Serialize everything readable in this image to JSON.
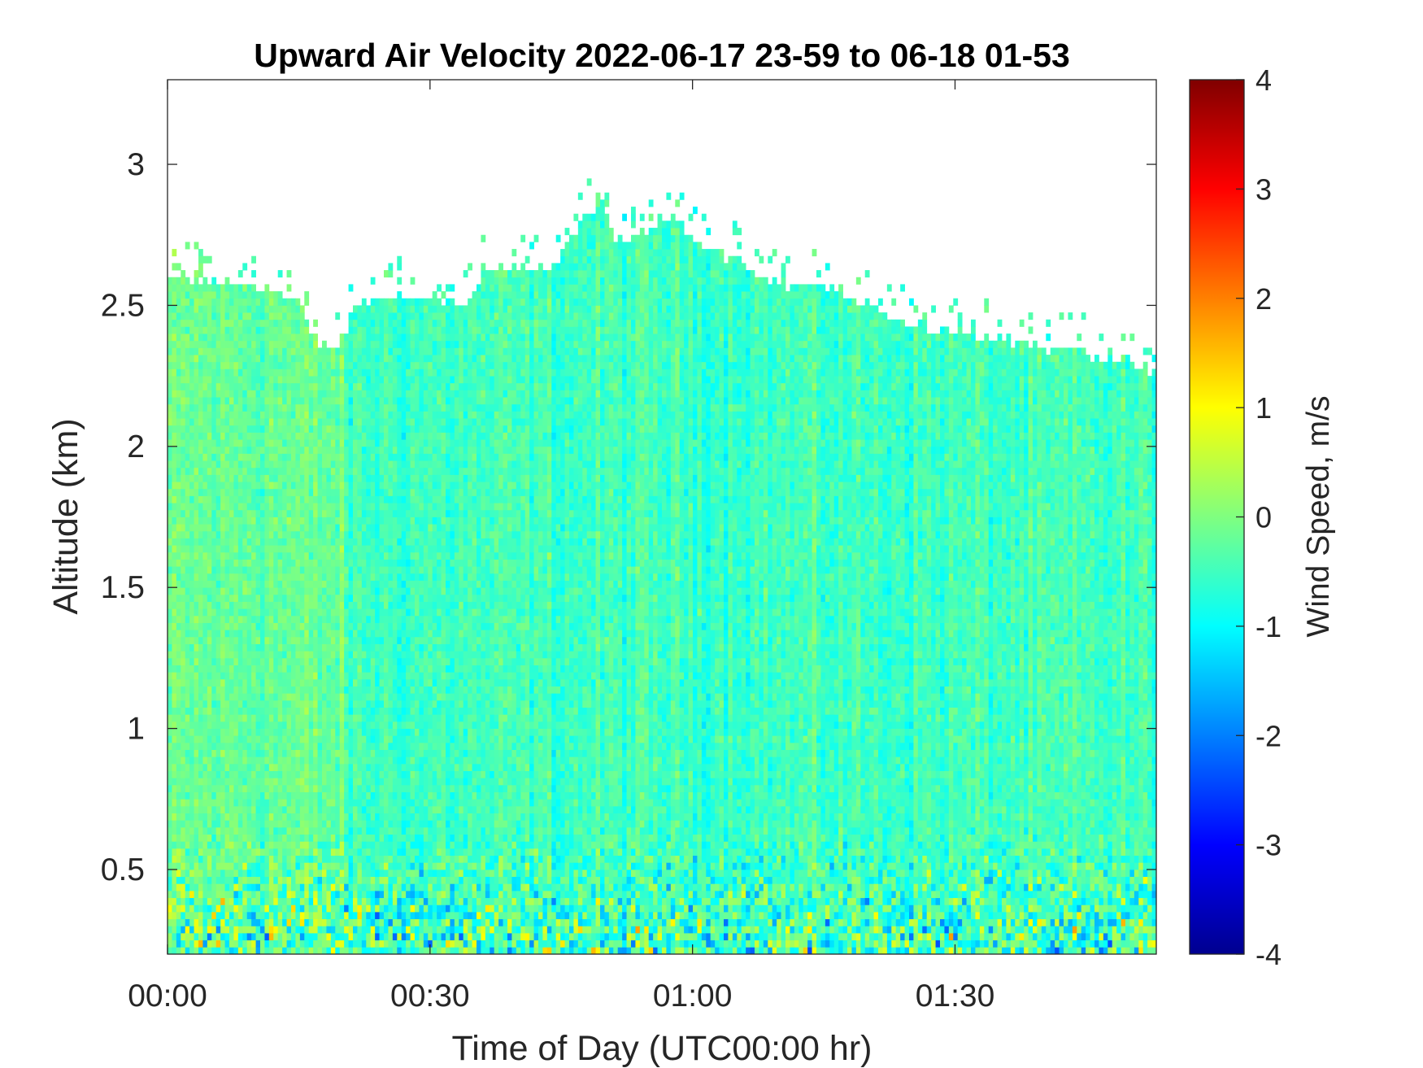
{
  "chart_data": {
    "type": "heatmap",
    "title": "Upward Air Velocity 2022-06-17 23-59 to 06-18 01-53",
    "xlabel": "Time of Day (UTC00:00 hr)",
    "ylabel": "Altitude (km)",
    "colorbar_label": "Wind Speed, m/s",
    "colormap": "jet",
    "x_unit": "minutes after 00:00 UTC",
    "xlim": [
      0,
      113
    ],
    "ylim": [
      0.2,
      3.3
    ],
    "clim": [
      -4,
      4
    ],
    "x_ticks": [
      {
        "value": 0,
        "label": "00:00"
      },
      {
        "value": 30,
        "label": "00:30"
      },
      {
        "value": 60,
        "label": "01:00"
      },
      {
        "value": 90,
        "label": "01:30"
      }
    ],
    "y_ticks": [
      {
        "value": 0.5,
        "label": "0.5"
      },
      {
        "value": 1,
        "label": "1"
      },
      {
        "value": 1.5,
        "label": "1.5"
      },
      {
        "value": 2,
        "label": "2"
      },
      {
        "value": 2.5,
        "label": "2.5"
      },
      {
        "value": 3,
        "label": "3"
      }
    ],
    "colorbar_ticks": [
      {
        "value": 4,
        "label": "4"
      },
      {
        "value": 3,
        "label": "3"
      },
      {
        "value": 2,
        "label": "2"
      },
      {
        "value": 1,
        "label": "1"
      },
      {
        "value": 0,
        "label": "0"
      },
      {
        "value": -1,
        "label": "-1"
      },
      {
        "value": -2,
        "label": "-2"
      },
      {
        "value": -3,
        "label": "-3"
      },
      {
        "value": -4,
        "label": "-4"
      }
    ],
    "data_top_altitude_km": [
      {
        "t": 0,
        "top": 2.58
      },
      {
        "t": 5,
        "top": 2.58
      },
      {
        "t": 10,
        "top": 2.55
      },
      {
        "t": 15,
        "top": 2.5
      },
      {
        "t": 17,
        "top": 2.36
      },
      {
        "t": 20,
        "top": 2.34
      },
      {
        "t": 21,
        "top": 2.48
      },
      {
        "t": 25,
        "top": 2.52
      },
      {
        "t": 30,
        "top": 2.52
      },
      {
        "t": 35,
        "top": 2.5
      },
      {
        "t": 36,
        "top": 2.62
      },
      {
        "t": 41,
        "top": 2.62
      },
      {
        "t": 44,
        "top": 2.62
      },
      {
        "t": 48,
        "top": 2.82
      },
      {
        "t": 50,
        "top": 2.85
      },
      {
        "t": 51,
        "top": 2.72
      },
      {
        "t": 55,
        "top": 2.75
      },
      {
        "t": 58,
        "top": 2.79
      },
      {
        "t": 60,
        "top": 2.72
      },
      {
        "t": 63,
        "top": 2.68
      },
      {
        "t": 67,
        "top": 2.62
      },
      {
        "t": 70,
        "top": 2.55
      },
      {
        "t": 75,
        "top": 2.56
      },
      {
        "t": 80,
        "top": 2.5
      },
      {
        "t": 84,
        "top": 2.42
      },
      {
        "t": 88,
        "top": 2.4
      },
      {
        "t": 93,
        "top": 2.38
      },
      {
        "t": 98,
        "top": 2.36
      },
      {
        "t": 103,
        "top": 2.33
      },
      {
        "t": 108,
        "top": 2.3
      },
      {
        "t": 113,
        "top": 2.26
      }
    ],
    "typical_velocity_m_s": [
      {
        "t_start": 0,
        "t_end": 20,
        "value": -0.2,
        "note": ""
      },
      {
        "t_start": 20,
        "t_end": 113,
        "value": -0.5,
        "note": ""
      }
    ]
  }
}
